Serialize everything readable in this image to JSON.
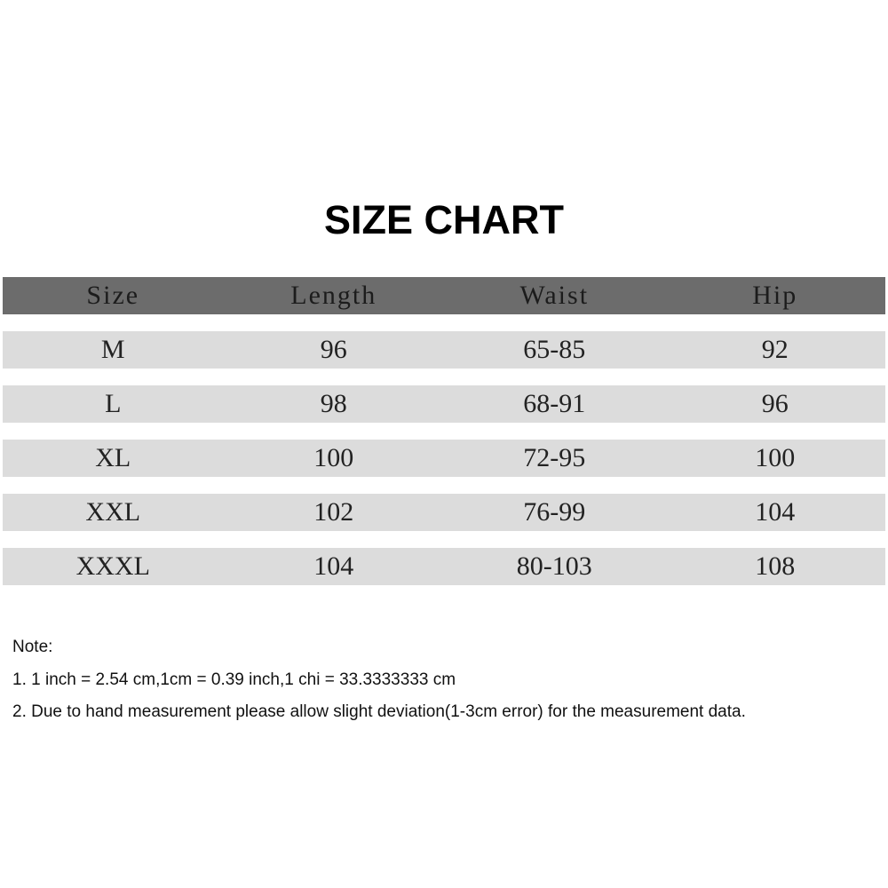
{
  "title": "SIZE CHART",
  "table": {
    "headers": [
      "Size",
      "Length",
      "Waist",
      "Hip"
    ],
    "rows": [
      [
        "M",
        "96",
        "65-85",
        "92"
      ],
      [
        "L",
        "98",
        "68-91",
        "96"
      ],
      [
        "XL",
        "100",
        "72-95",
        "100"
      ],
      [
        "XXL",
        "102",
        "76-99",
        "104"
      ],
      [
        "XXXL",
        "104",
        "80-103",
        "108"
      ]
    ]
  },
  "notes": {
    "heading": "Note:",
    "items": [
      "1. 1 inch = 2.54 cm,1cm = 0.39 inch,1 chi = 33.3333333 cm",
      "2. Due to hand measurement please allow slight deviation(1-3cm error) for the measurement data."
    ]
  },
  "colors": {
    "header_bg": "#6c6c6c",
    "row_bg": "#dcdcdc"
  }
}
